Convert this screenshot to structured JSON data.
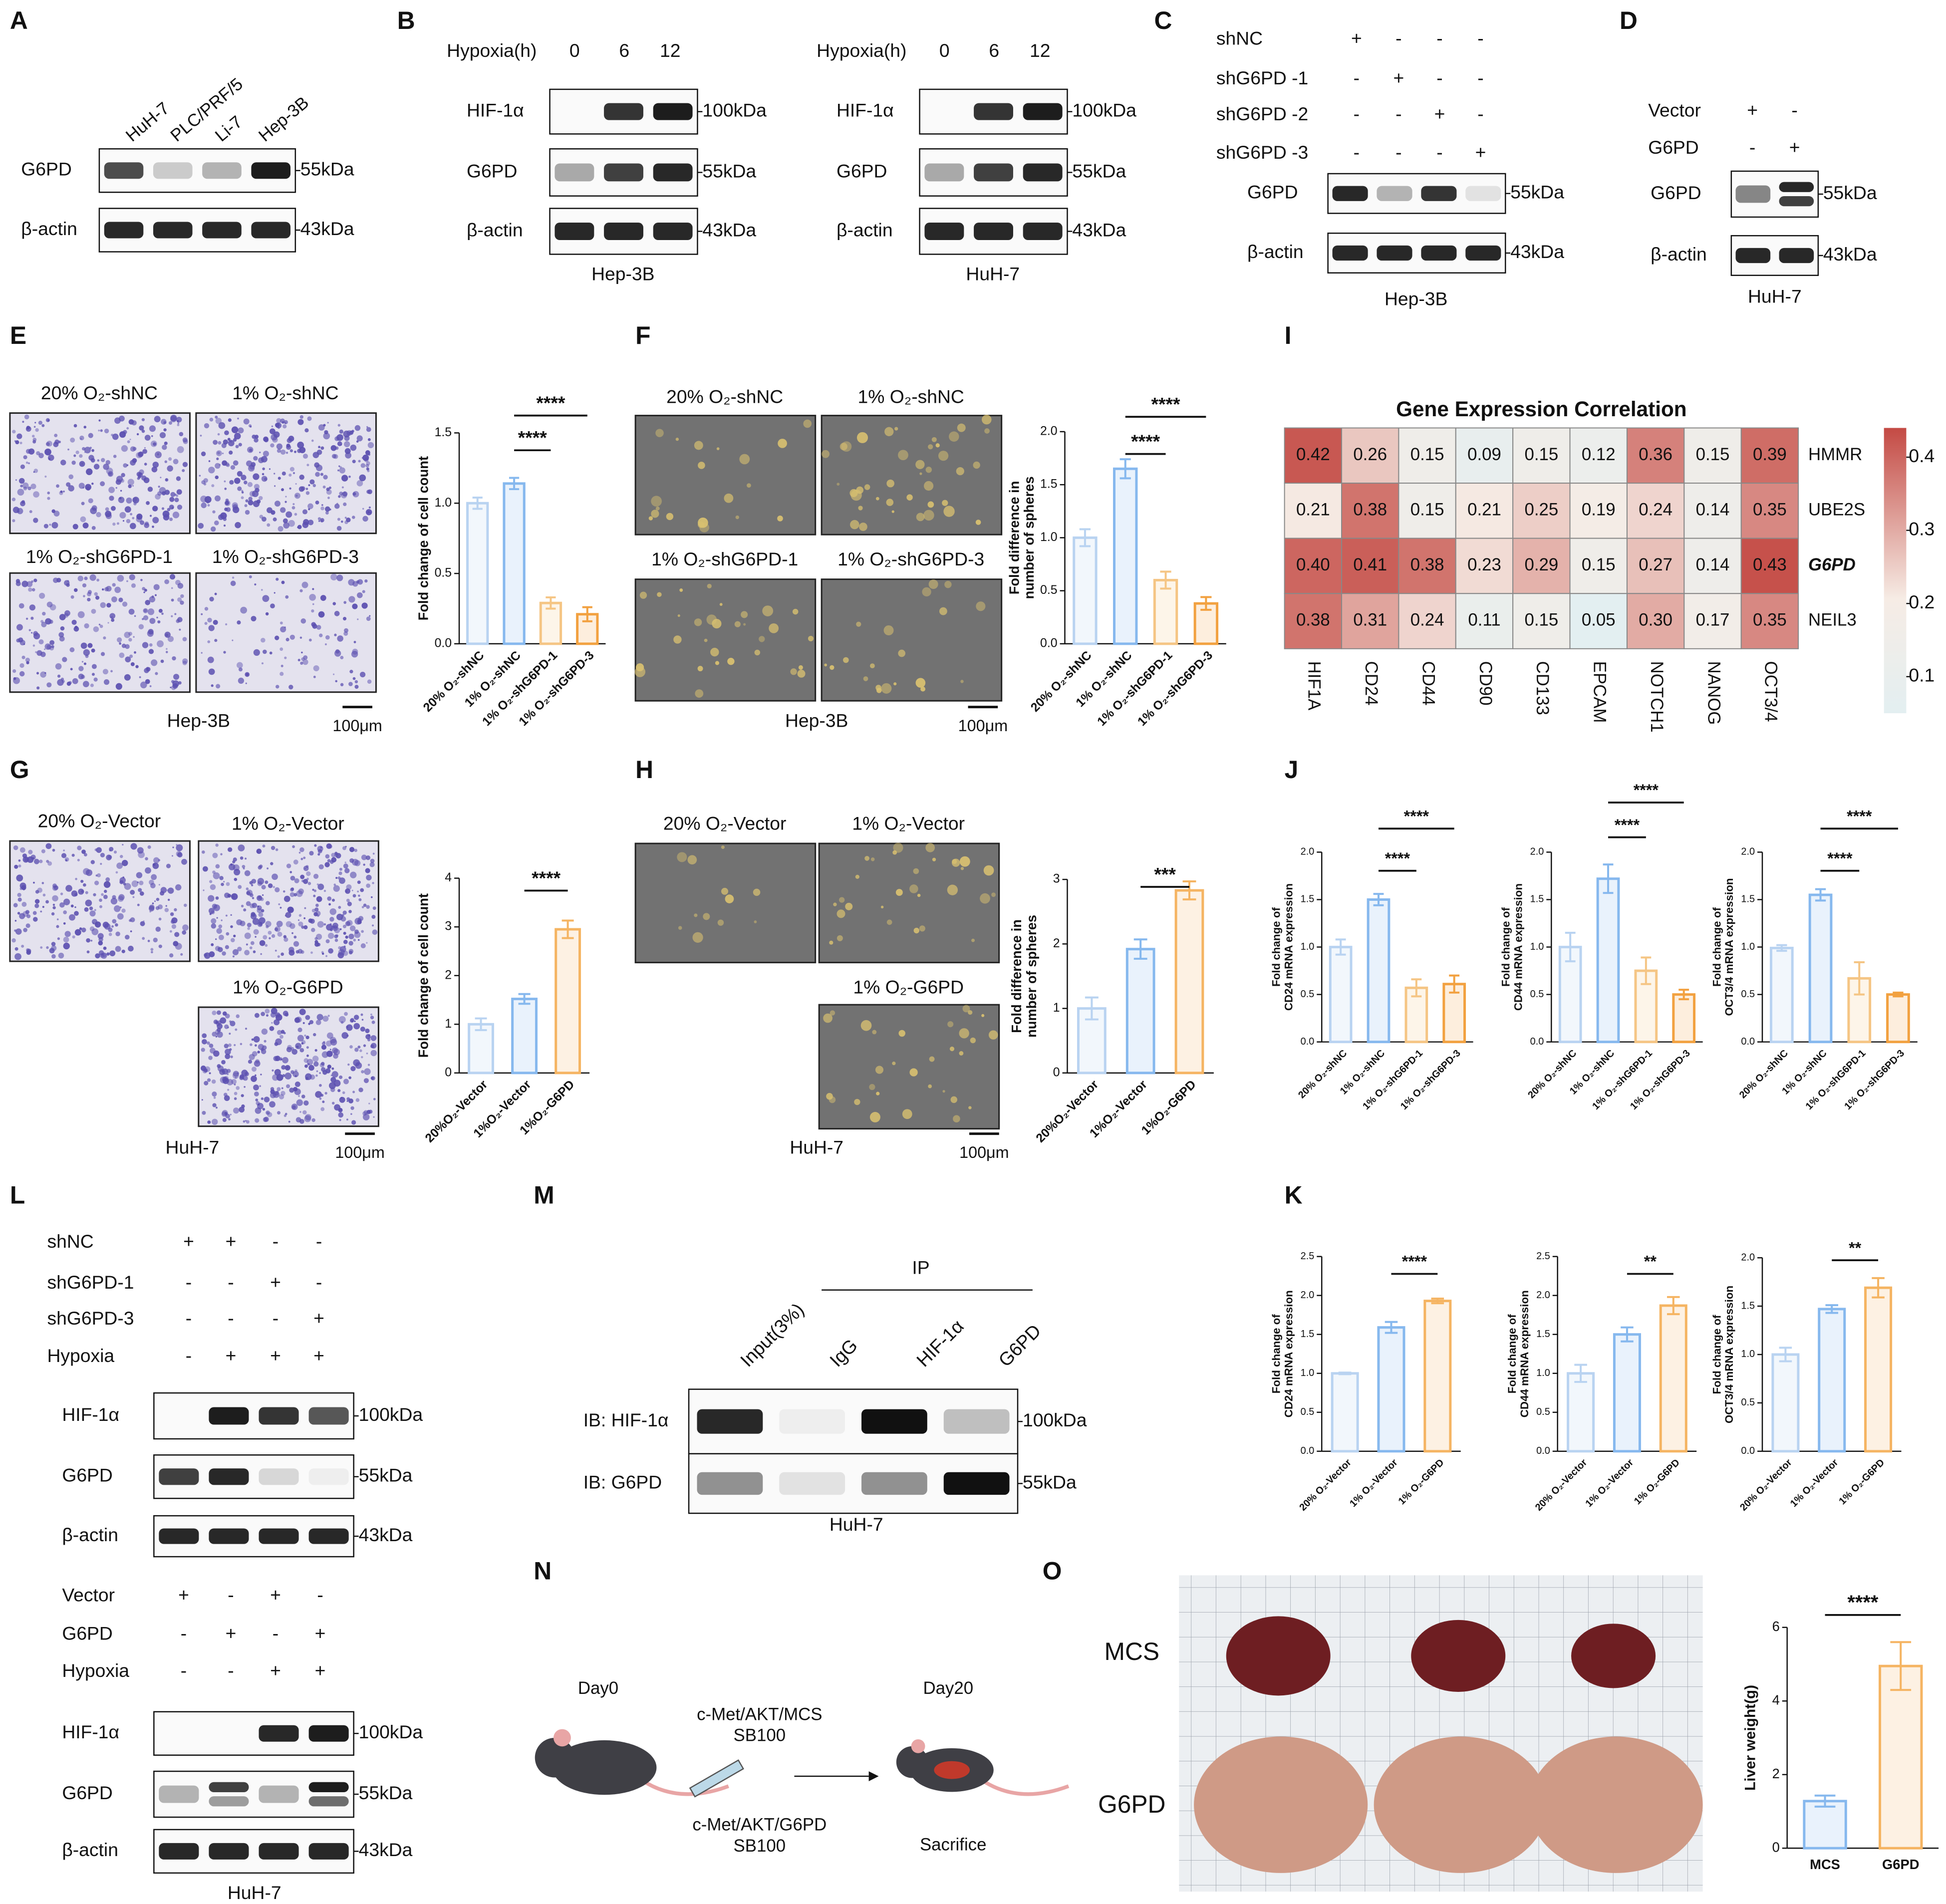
{
  "letters": [
    "A",
    "B",
    "C",
    "D",
    "E",
    "F",
    "I",
    "G",
    "H",
    "J",
    "L",
    "M",
    "K",
    "N",
    "O"
  ],
  "blots": {
    "A": {
      "lanes": [
        "HuH-7",
        "PLC/PRF/5",
        "Li-7",
        "Hep-3B"
      ],
      "rows": [
        "G6PD",
        "β-actin"
      ],
      "markers": [
        "55kDa",
        "43kDa"
      ]
    },
    "B1": {
      "header": "Hypoxia(h)",
      "lanes": [
        "0",
        "6",
        "12"
      ],
      "rows": [
        "HIF-1α",
        "G6PD",
        "β-actin"
      ],
      "markers": [
        "100kDa",
        "55kDa",
        "43kDa"
      ],
      "cell": "Hep-3B"
    },
    "B2": {
      "header": "Hypoxia(h)",
      "lanes": [
        "0",
        "6",
        "12"
      ],
      "rows": [
        "HIF-1α",
        "G6PD",
        "β-actin"
      ],
      "markers": [
        "100kDa",
        "55kDa",
        "43kDa"
      ],
      "cell": "HuH-7"
    },
    "C": {
      "conditions": [
        {
          "name": "shNC",
          "signs": [
            "+",
            "-",
            "-",
            "-"
          ]
        },
        {
          "name": "shG6PD -1",
          "signs": [
            "-",
            "+",
            "-",
            "-"
          ]
        },
        {
          "name": "shG6PD -2",
          "signs": [
            "-",
            "-",
            "+",
            "-"
          ]
        },
        {
          "name": "shG6PD -3",
          "signs": [
            "-",
            "-",
            "-",
            "+"
          ]
        }
      ],
      "rows": [
        "G6PD",
        "β-actin"
      ],
      "markers": [
        "55kDa",
        "43kDa"
      ],
      "cell": "Hep-3B"
    },
    "D": {
      "conditions": [
        {
          "name": "Vector",
          "signs": [
            "+",
            "-"
          ]
        },
        {
          "name": "G6PD",
          "signs": [
            "-",
            "+"
          ]
        }
      ],
      "rows": [
        "G6PD",
        "β-actin"
      ],
      "markers": [
        "55kDa",
        "43kDa"
      ],
      "cell": "HuH-7"
    },
    "L1": {
      "conditions": [
        {
          "name": "shNC",
          "signs": [
            "+",
            "+",
            "-",
            "-"
          ]
        },
        {
          "name": "shG6PD-1",
          "signs": [
            "-",
            "-",
            "+",
            "-"
          ]
        },
        {
          "name": "shG6PD-3",
          "signs": [
            "-",
            "-",
            "-",
            "+"
          ]
        },
        {
          "name": "Hypoxia",
          "signs": [
            "-",
            "+",
            "+",
            "+"
          ]
        }
      ],
      "rows": [
        "HIF-1α",
        "G6PD",
        "β-actin"
      ],
      "markers": [
        "100kDa",
        "55kDa",
        "43kDa"
      ]
    },
    "L2": {
      "conditions": [
        {
          "name": "Vector",
          "signs": [
            "+",
            "-",
            "+",
            "-"
          ]
        },
        {
          "name": "G6PD",
          "signs": [
            "-",
            "+",
            "-",
            "+"
          ]
        },
        {
          "name": "Hypoxia",
          "signs": [
            "-",
            "-",
            "+",
            "+"
          ]
        }
      ],
      "rows": [
        "HIF-1α",
        "G6PD",
        "β-actin"
      ],
      "markers": [
        "100kDa",
        "55kDa",
        "43kDa"
      ],
      "cell": "HuH-7"
    },
    "M": {
      "ip": "IP",
      "lanes": [
        "Input(3%)",
        "IgG",
        "HIF-1α",
        "G6PD"
      ],
      "rows": [
        "IB: HIF-1α",
        "IB: G6PD"
      ],
      "markers": [
        "100kDa",
        "55kDa"
      ],
      "cell": "HuH-7"
    }
  },
  "images": {
    "E": {
      "captions": [
        "20% O₂-shNC",
        "1% O₂-shNC",
        "1% O₂-shG6PD-1",
        "1% O₂-shG6PD-3"
      ],
      "cell": "Hep-3B",
      "scale": "100μm"
    },
    "F": {
      "captions": [
        "20% O₂-shNC",
        "1% O₂-shNC",
        "1% O₂-shG6PD-1",
        "1% O₂-shG6PD-3"
      ],
      "cell": "Hep-3B",
      "scale": "100μm"
    },
    "G": {
      "captions": [
        "20% O₂-Vector",
        "1% O₂-Vector",
        "1% O₂-G6PD"
      ],
      "cell": "HuH-7",
      "scale": "100μm"
    },
    "H": {
      "captions": [
        "20% O₂-Vector",
        "1% O₂-Vector",
        "1% O₂-G6PD"
      ],
      "cell": "HuH-7",
      "scale": "100μm"
    },
    "O": {
      "rows": [
        "MCS",
        "G6PD"
      ]
    }
  },
  "scheme": {
    "start": "Day0",
    "end": "Day20",
    "top": "c-Met/AKT/MCS",
    "top_vector": "SB100",
    "bottom": "c-Met/AKT/G6PD",
    "bottom_vector": "SB100",
    "end_note": "Sacrifice"
  },
  "chart_data": [
    {
      "type": "bar",
      "ylabel": [
        "Fold change of cell count"
      ],
      "categories": [
        "20% O₂-shNC",
        "1% O₂-shNC",
        "1% O₂-shG6PD-1",
        "1% O₂-shG6PD-3"
      ],
      "values": [
        1.0,
        1.14,
        0.29,
        0.21
      ],
      "errors": [
        0.04,
        0.04,
        0.04,
        0.05
      ],
      "colors": [
        "#b9d3f1",
        "#86b8ee",
        "#f5c584",
        "#f2a140"
      ],
      "ylim": [
        0,
        1.5
      ],
      "yticks": [
        {
          "value": 0,
          "label": "0.0"
        },
        0.5,
        {
          "value": 1,
          "label": "1.0"
        },
        1.5
      ],
      "annotations": [
        "****",
        "****"
      ]
    },
    {
      "type": "bar",
      "ylabel": [
        "Fold difference in",
        "number of spheres"
      ],
      "categories": [
        "20% O₂-shNC",
        "1% O₂-shNC",
        "1% O₂-shG6PD-1",
        "1% O₂-shG6PD-3"
      ],
      "values": [
        1.0,
        1.65,
        0.6,
        0.38
      ],
      "errors": [
        0.08,
        0.09,
        0.08,
        0.06
      ],
      "colors": [
        "#b9d3f1",
        "#86b8ee",
        "#f5c584",
        "#f2a140"
      ],
      "ylim": [
        0,
        2
      ],
      "yticks": [
        {
          "value": 0,
          "label": "0.0"
        },
        0.5,
        {
          "value": 1,
          "label": "1.0"
        },
        1.5,
        {
          "value": 2,
          "label": "2.0"
        }
      ],
      "annotations": [
        "****",
        "****"
      ]
    },
    {
      "type": "heatmap",
      "title": "Gene Expression Correlation",
      "x": [
        "HIF1A",
        "CD24",
        "CD44",
        "CD90",
        "CD133",
        "EPCAM",
        "NOTCH1",
        "NANOG",
        "OCT3/4"
      ],
      "y": [
        "HMMR",
        "UBE2S",
        "G6PD",
        "NEIL3"
      ],
      "values": [
        [
          0.42,
          0.26,
          0.15,
          0.09,
          0.15,
          0.12,
          0.36,
          0.15,
          0.39
        ],
        [
          0.21,
          0.38,
          0.15,
          0.21,
          0.25,
          0.19,
          0.24,
          0.14,
          0.35
        ],
        [
          0.4,
          0.41,
          0.38,
          0.23,
          0.29,
          0.15,
          0.27,
          0.14,
          0.43
        ],
        [
          0.38,
          0.31,
          0.24,
          0.11,
          0.15,
          0.05,
          0.3,
          0.17,
          0.35
        ]
      ],
      "value_labels": [
        [
          "0.42",
          "0.26",
          "0.15",
          "0.09",
          "0.15",
          "0.12",
          "0.36",
          "0.15",
          "0.39"
        ],
        [
          "0.21",
          "0.38",
          "0.15",
          "0.21",
          "0.25",
          "0.19",
          "0.24",
          "0.14",
          "0.35"
        ],
        [
          "0.40",
          "0.41",
          "0.38",
          "0.23",
          "0.29",
          "0.15",
          "0.27",
          "0.14",
          "0.43"
        ],
        [
          "0.38",
          "0.31",
          "0.24",
          "0.11",
          "0.15",
          "0.05",
          "0.30",
          "0.17",
          "0.35"
        ]
      ],
      "clim": [
        0.05,
        0.44
      ],
      "cticks": [
        0.1,
        0.2,
        0.3,
        0.4
      ],
      "colors": [
        "#e3eff1",
        "#f6ece5",
        "#c44a44"
      ]
    },
    {
      "type": "bar",
      "ylabel": [
        "Fold change of cell count"
      ],
      "categories": [
        "20%O₂-Vector",
        "1%O₂-Vector",
        "1%O₂-G6PD"
      ],
      "values": [
        1.0,
        1.52,
        2.95
      ],
      "errors": [
        0.12,
        0.1,
        0.18
      ],
      "colors": [
        "#b9d3f1",
        "#86b8ee",
        "#f5b462"
      ],
      "ylim": [
        0,
        4
      ],
      "yticks": [
        0,
        1,
        2,
        3,
        4
      ],
      "annotations": [
        "****"
      ]
    },
    {
      "type": "bar",
      "ylabel": [
        "Fold difference in",
        "number of spheres"
      ],
      "categories": [
        "20%O₂-Vector",
        "1%O₂-Vector",
        "1%O₂-G6PD"
      ],
      "values": [
        1.0,
        1.92,
        2.83
      ],
      "errors": [
        0.17,
        0.15,
        0.14
      ],
      "colors": [
        "#b9d3f1",
        "#86b8ee",
        "#f5b462"
      ],
      "ylim": [
        0,
        3
      ],
      "yticks": [
        0,
        1,
        2,
        3
      ],
      "annotations": [
        "***"
      ]
    },
    {
      "type": "bar",
      "ylabel": [
        "Fold change of",
        "CD24 mRNA expression"
      ],
      "categories": [
        "20% O₂-shNC",
        "1% O₂-shNC",
        "1% O₂-shG6PD-1",
        "1% O₂-shG6PD-3"
      ],
      "values": [
        1.0,
        1.5,
        0.57,
        0.61
      ],
      "errors": [
        0.08,
        0.06,
        0.09,
        0.09
      ],
      "colors": [
        "#b9d3f1",
        "#86b8ee",
        "#f5c584",
        "#f2a140"
      ],
      "ylim": [
        0,
        2
      ],
      "yticks": [
        {
          "value": 0,
          "label": "0.0"
        },
        0.5,
        {
          "value": 1,
          "label": "1.0"
        },
        1.5,
        {
          "value": 2,
          "label": "2.0"
        }
      ],
      "annotations": [
        "****",
        "****"
      ]
    },
    {
      "type": "bar",
      "ylabel": [
        "Fold change of",
        "CD44 mRNA expression"
      ],
      "categories": [
        "20% O₂-shNC",
        "1% O₂-shNC",
        "1% O₂-shG6PD-1",
        "1% O₂-shG6PD-3"
      ],
      "values": [
        1.0,
        1.72,
        0.75,
        0.5
      ],
      "errors": [
        0.15,
        0.15,
        0.14,
        0.05
      ],
      "colors": [
        "#b9d3f1",
        "#86b8ee",
        "#f5c584",
        "#f2a140"
      ],
      "ylim": [
        0,
        2
      ],
      "yticks": [
        {
          "value": 0,
          "label": "0.0"
        },
        0.5,
        {
          "value": 1,
          "label": "1.0"
        },
        1.5,
        {
          "value": 2,
          "label": "2.0"
        }
      ],
      "annotations": [
        "****",
        "****"
      ]
    },
    {
      "type": "bar",
      "ylabel": [
        "Fold change of",
        "OCT3/4 mRNA expression"
      ],
      "categories": [
        "20% O₂-shNC",
        "1% O₂-shNC",
        "1% O₂-shG6PD-1",
        "1% O₂-shG6PD-3"
      ],
      "values": [
        0.99,
        1.55,
        0.67,
        0.5
      ],
      "errors": [
        0.03,
        0.06,
        0.17,
        0.02
      ],
      "colors": [
        "#b9d3f1",
        "#86b8ee",
        "#f5c584",
        "#f2a140"
      ],
      "ylim": [
        0,
        2
      ],
      "yticks": [
        {
          "value": 0,
          "label": "0.0"
        },
        0.5,
        {
          "value": 1,
          "label": "1.0"
        },
        1.5,
        {
          "value": 2,
          "label": "2.0"
        }
      ],
      "annotations": [
        "****",
        "****"
      ]
    },
    {
      "type": "bar",
      "ylabel": [
        "Fold change of",
        "CD24 mRNA expression"
      ],
      "categories": [
        "20% O₂-Vector",
        "1% O₂-Vector",
        "1% O₂-G6PD"
      ],
      "values": [
        1.0,
        1.59,
        1.93
      ],
      "errors": [
        0.01,
        0.07,
        0.03
      ],
      "colors": [
        "#b9d3f1",
        "#86b8ee",
        "#f5b462"
      ],
      "ylim": [
        0,
        2.5
      ],
      "yticks": [
        {
          "value": 0,
          "label": "0.0"
        },
        0.5,
        {
          "value": 1,
          "label": "1.0"
        },
        1.5,
        {
          "value": 2,
          "label": "2.0"
        },
        2.5
      ],
      "annotations": [
        "****"
      ]
    },
    {
      "type": "bar",
      "ylabel": [
        "Fold change of",
        "CD44 mRNA expression"
      ],
      "categories": [
        "20% O₂-Vector",
        "1% O₂-Vector",
        "1% O₂-G6PD"
      ],
      "values": [
        1.0,
        1.5,
        1.87
      ],
      "errors": [
        0.11,
        0.09,
        0.11
      ],
      "colors": [
        "#b9d3f1",
        "#86b8ee",
        "#f5b462"
      ],
      "ylim": [
        0,
        2.5
      ],
      "yticks": [
        {
          "value": 0,
          "label": "0.0"
        },
        0.5,
        {
          "value": 1,
          "label": "1.0"
        },
        1.5,
        {
          "value": 2,
          "label": "2.0"
        },
        2.5
      ],
      "annotations": [
        "**"
      ]
    },
    {
      "type": "bar",
      "ylabel": [
        "Fold change of",
        "OCT3/4 mRNA expression"
      ],
      "categories": [
        "20% O₂-Vector",
        "1% O₂-Vector",
        "1% O₂-G6PD"
      ],
      "values": [
        1.0,
        1.47,
        1.69
      ],
      "errors": [
        0.07,
        0.04,
        0.1
      ],
      "colors": [
        "#b9d3f1",
        "#86b8ee",
        "#f5b462"
      ],
      "ylim": [
        0,
        2
      ],
      "yticks": [
        {
          "value": 0,
          "label": "0.0"
        },
        0.5,
        {
          "value": 1,
          "label": "1.0"
        },
        1.5,
        {
          "value": 2,
          "label": "2.0"
        }
      ],
      "annotations": [
        "**"
      ]
    },
    {
      "type": "bar",
      "ylabel": [
        "Liver weight(g)"
      ],
      "categories": [
        "MCS",
        "G6PD"
      ],
      "values": [
        1.28,
        4.95
      ],
      "errors": [
        0.15,
        0.65
      ],
      "colors": [
        "#86b8ee",
        "#f5b462"
      ],
      "ylim": [
        0,
        6
      ],
      "yticks": [
        0,
        2,
        4,
        6
      ],
      "annotations": [
        "****"
      ]
    }
  ]
}
